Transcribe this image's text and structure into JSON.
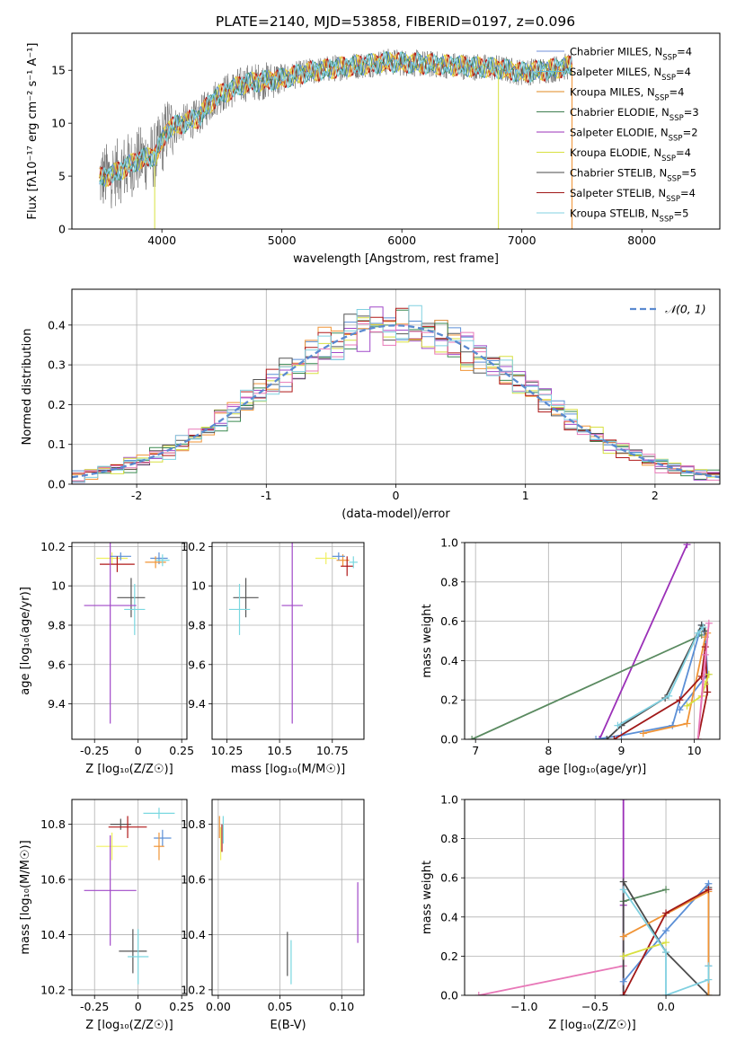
{
  "figure_title": "PLATE=2140, MJD=53858, FIBERID=0197, z=0.096",
  "model_colors": [
    "#5b8fd6",
    "#f09436",
    "#3a8a50",
    "#a048c8",
    "#f0f060",
    "#555555",
    "#b01818",
    "#d8d800",
    "#7ad8e0"
  ],
  "legend_entries": [
    {
      "label": "Chabrier MILES, N_SSP=4",
      "text": "Chabrier MILES, N",
      "sub": "SSP",
      "tail": "=4",
      "color": "#6f8fd8"
    },
    {
      "label": "Salpeter MILES, N_SSP=4",
      "text": "Salpeter MILES, N",
      "sub": "SSP",
      "tail": "=4",
      "color": "#5fb8d0"
    },
    {
      "label": "Kroupa MILES, N_SSP=4",
      "text": "Kroupa MILES, N",
      "sub": "SSP",
      "tail": "=4",
      "color": "#e08a20"
    },
    {
      "label": "Chabrier ELODIE, N_SSP=3",
      "text": "Chabrier ELODIE, N",
      "sub": "SSP",
      "tail": "=3",
      "color": "#3f7f50"
    },
    {
      "label": "Salpeter ELODIE, N_SSP=2",
      "text": "Salpeter ELODIE, N",
      "sub": "SSP",
      "tail": "=2",
      "color": "#9b30b8"
    },
    {
      "label": "Kroupa ELODIE, N_SSP=4",
      "text": "Kroupa ELODIE, N",
      "sub": "SSP",
      "tail": "=4",
      "color": "#d8e040"
    },
    {
      "label": "Chabrier STELIB, N_SSP=5",
      "text": "Chabrier STELIB, N",
      "sub": "SSP",
      "tail": "=5",
      "color": "#4a4a4a"
    },
    {
      "label": "Salpeter STELIB, N_SSP=4",
      "text": "Salpeter STELIB, N",
      "sub": "SSP",
      "tail": "=4",
      "color": "#a01818"
    },
    {
      "label": "Kroupa STELIB, N_SSP=5",
      "text": "Kroupa STELIB, N",
      "sub": "SSP",
      "tail": "=5",
      "color": "#80d0e0"
    }
  ],
  "chart_data": [
    {
      "id": "spectrum",
      "type": "line",
      "title": "PLATE=2140, MJD=53858, FIBERID=0197, z=0.096",
      "xlabel": "wavelength [Angstrom, rest frame]",
      "ylabel": "Flux [fλ10⁻¹⁷ erg cm⁻² s⁻¹ A⁻¹]",
      "xlim": [
        3250,
        8650
      ],
      "ylim": [
        0,
        18.5
      ],
      "xticks": [
        4000,
        5000,
        6000,
        7000,
        8000
      ],
      "yticks": [
        0,
        5,
        10,
        15
      ],
      "continuum": {
        "x": [
          3480,
          3600,
          3800,
          3950,
          4050,
          4300,
          4450,
          4700,
          5000,
          5200,
          5500,
          5900,
          6200,
          6500,
          6800,
          7000,
          7200,
          7400
        ],
        "y": [
          4.8,
          5.2,
          6.5,
          7.0,
          9.5,
          10.5,
          12.5,
          13.8,
          14.2,
          14.8,
          15.3,
          15.8,
          15.6,
          15.4,
          15.2,
          14.8,
          15.0,
          15.4
        ]
      },
      "grid": false
    },
    {
      "id": "residual_histogram",
      "type": "histogram",
      "xlabel": "(data-model)/error",
      "ylabel": "Normed distribution",
      "xlim": [
        -2.5,
        2.5
      ],
      "ylim": [
        0,
        0.49
      ],
      "xticks": [
        -2,
        -1,
        0,
        1,
        2
      ],
      "yticks": [
        0.0,
        0.1,
        0.2,
        0.3,
        0.4
      ],
      "legend": {
        "label": "𝒩(0, 1)",
        "placement": "top-right"
      },
      "reference_curve": "normal(0,1)",
      "grid": true
    },
    {
      "id": "age_vs_Z",
      "type": "errorbar",
      "xlabel": "Z [log₁₀(Z/Z☉)]",
      "ylabel": "age  [log₁₀(age/yr)]",
      "xlim": [
        -0.38,
        0.28
      ],
      "ylim": [
        9.22,
        10.22
      ],
      "xticks": [
        -0.25,
        0.0,
        0.25
      ],
      "yticks": [
        9.4,
        9.6,
        9.8,
        10.0,
        10.2
      ],
      "points": [
        {
          "x": -0.15,
          "y": 10.14,
          "xerr": 0.09,
          "yerr": 0.03,
          "c": 4
        },
        {
          "x": -0.1,
          "y": 10.15,
          "xerr": 0.06,
          "yerr": 0.02,
          "c": 0
        },
        {
          "x": -0.12,
          "y": 10.11,
          "xerr": 0.1,
          "yerr": 0.04,
          "c": 6
        },
        {
          "x": 0.12,
          "y": 10.14,
          "xerr": 0.05,
          "yerr": 0.03,
          "c": 0
        },
        {
          "x": 0.1,
          "y": 10.12,
          "xerr": 0.06,
          "yerr": 0.03,
          "c": 1
        },
        {
          "x": 0.14,
          "y": 10.13,
          "xerr": 0.04,
          "yerr": 0.03,
          "c": 8
        },
        {
          "x": -0.04,
          "y": 9.94,
          "xerr": 0.08,
          "yerr": 0.1,
          "c": 5
        },
        {
          "x": -0.02,
          "y": 9.88,
          "xerr": 0.06,
          "yerr": 0.13,
          "c": 8
        },
        {
          "x": -0.16,
          "y": 9.9,
          "xerr": 0.15,
          "yerr": 0.6,
          "c": 3
        }
      ]
    },
    {
      "id": "age_vs_mass",
      "type": "errorbar",
      "xlabel": "mass [log₁₀(M/M☉)]",
      "ylabel": "",
      "xlim": [
        10.18,
        10.9
      ],
      "ylim": [
        9.22,
        10.22
      ],
      "xticks": [
        10.25,
        10.5,
        10.75
      ],
      "yticks": [
        9.4,
        9.6,
        9.8,
        10.0,
        10.2
      ],
      "points": [
        {
          "x": 10.72,
          "y": 10.14,
          "xerr": 0.05,
          "yerr": 0.03,
          "c": 4
        },
        {
          "x": 10.8,
          "y": 10.13,
          "xerr": 0.03,
          "yerr": 0.03,
          "c": 1
        },
        {
          "x": 10.78,
          "y": 10.15,
          "xerr": 0.03,
          "yerr": 0.02,
          "c": 0
        },
        {
          "x": 10.82,
          "y": 10.1,
          "xerr": 0.03,
          "yerr": 0.05,
          "c": 6
        },
        {
          "x": 10.85,
          "y": 10.12,
          "xerr": 0.02,
          "yerr": 0.03,
          "c": 8
        },
        {
          "x": 10.34,
          "y": 9.94,
          "xerr": 0.06,
          "yerr": 0.1,
          "c": 5
        },
        {
          "x": 10.31,
          "y": 9.88,
          "xerr": 0.05,
          "yerr": 0.13,
          "c": 8
        },
        {
          "x": 10.56,
          "y": 9.9,
          "xerr": 0.05,
          "yerr": 0.6,
          "c": 3
        }
      ]
    },
    {
      "id": "massweight_vs_age",
      "type": "line",
      "xlabel": "age  [log₁₀(age/yr)]",
      "ylabel": "mass weight",
      "xlim": [
        6.85,
        10.35
      ],
      "ylim": [
        0,
        1.0
      ],
      "xticks": [
        7,
        8,
        9,
        10
      ],
      "yticks": [
        0.0,
        0.2,
        0.4,
        0.6,
        0.8,
        1.0
      ],
      "series": [
        {
          "c": 3,
          "x": [
            8.7,
            9.9
          ],
          "y": [
            0.0,
            0.99
          ]
        },
        {
          "c": 2,
          "x": [
            6.95,
            10.1
          ],
          "y": [
            0.0,
            0.53
          ]
        },
        {
          "c": 0,
          "x": [
            8.65,
            9.0,
            9.7,
            10.1,
            10.15,
            10.18,
            9.8
          ],
          "y": [
            0.0,
            0.02,
            0.07,
            0.58,
            0.52,
            0.33,
            0.15
          ]
        },
        {
          "c": 1,
          "x": [
            9.3,
            9.9,
            10.15,
            10.18
          ],
          "y": [
            0.03,
            0.08,
            0.52,
            0.54
          ]
        },
        {
          "c": 5,
          "x": [
            8.8,
            9.0,
            9.6,
            10.1,
            10.15
          ],
          "y": [
            0.0,
            0.07,
            0.21,
            0.58,
            0.55
          ]
        },
        {
          "c": 6,
          "x": [
            8.9,
            9.8,
            10.1,
            10.15,
            10.18,
            10.05
          ],
          "y": [
            0.0,
            0.2,
            0.32,
            0.47,
            0.24,
            0.0
          ]
        },
        {
          "c": 7,
          "x": [
            9.9,
            10.1,
            10.2,
            10.15
          ],
          "y": [
            0.17,
            0.22,
            0.33,
            0.28
          ]
        },
        {
          "c": 8,
          "x": [
            8.95,
            9.65,
            10.05,
            10.12
          ],
          "y": [
            0.07,
            0.22,
            0.54,
            0.57
          ]
        },
        {
          "c": 9,
          "x": [
            10.2,
            10.05,
            10.15
          ],
          "y": [
            0.59,
            0.0,
            0.43
          ]
        }
      ]
    },
    {
      "id": "mass_vs_Z",
      "type": "errorbar",
      "xlabel": "Z [log₁₀(Z/Z☉)]",
      "ylabel": "mass [log₁₀(M/M☉)]",
      "xlim": [
        -0.38,
        0.28
      ],
      "ylim": [
        10.18,
        10.89
      ],
      "xticks": [
        -0.25,
        0.0,
        0.25
      ],
      "yticks": [
        10.2,
        10.4,
        10.6,
        10.8
      ],
      "points": [
        {
          "x": -0.15,
          "y": 10.72,
          "xerr": 0.09,
          "yerr": 0.05,
          "c": 4
        },
        {
          "x": -0.1,
          "y": 10.8,
          "xerr": 0.06,
          "yerr": 0.02,
          "c": 5
        },
        {
          "x": -0.06,
          "y": 10.79,
          "xerr": 0.11,
          "yerr": 0.04,
          "c": 6
        },
        {
          "x": 0.14,
          "y": 10.75,
          "xerr": 0.05,
          "yerr": 0.03,
          "c": 0
        },
        {
          "x": 0.12,
          "y": 10.72,
          "xerr": 0.03,
          "yerr": 0.05,
          "c": 1
        },
        {
          "x": 0.12,
          "y": 10.84,
          "xerr": 0.09,
          "yerr": 0.02,
          "c": 8
        },
        {
          "x": -0.03,
          "y": 10.34,
          "xerr": 0.08,
          "yerr": 0.08,
          "c": 5
        },
        {
          "x": 0.0,
          "y": 10.32,
          "xerr": 0.06,
          "yerr": 0.1,
          "c": 8
        },
        {
          "x": -0.16,
          "y": 10.56,
          "xerr": 0.15,
          "yerr": 0.2,
          "c": 3
        }
      ]
    },
    {
      "id": "mass_vs_EBV",
      "type": "errorbar",
      "xlabel": "E(B-V)",
      "ylabel": "",
      "xlim": [
        -0.005,
        0.118
      ],
      "ylim": [
        10.18,
        10.89
      ],
      "xticks": [
        0.0,
        0.05,
        0.1
      ],
      "yticks": [
        10.2,
        10.4,
        10.6,
        10.8
      ],
      "points": [
        {
          "x": 0.002,
          "y": 10.73,
          "xerr": 0.0,
          "yerr": 0.06,
          "c": 4
        },
        {
          "x": 0.003,
          "y": 10.75,
          "xerr": 0.0,
          "yerr": 0.05,
          "c": 6
        },
        {
          "x": 0.004,
          "y": 10.78,
          "xerr": 0.0,
          "yerr": 0.05,
          "c": 8
        },
        {
          "x": 0.001,
          "y": 10.79,
          "xerr": 0.0,
          "yerr": 0.04,
          "c": 1
        },
        {
          "x": 0.056,
          "y": 10.33,
          "xerr": 0.0,
          "yerr": 0.08,
          "c": 5
        },
        {
          "x": 0.059,
          "y": 10.3,
          "xerr": 0.0,
          "yerr": 0.08,
          "c": 8
        },
        {
          "x": 0.113,
          "y": 10.48,
          "xerr": 0.0,
          "yerr": 0.11,
          "c": 3
        }
      ]
    },
    {
      "id": "massweight_vs_Z",
      "type": "line",
      "xlabel": "Z [log₁₀(Z/Z☉)]",
      "ylabel": "mass weight",
      "xlim": [
        -1.42,
        0.38
      ],
      "ylim": [
        0,
        1.0
      ],
      "xticks": [
        -1.0,
        -0.5,
        0.0
      ],
      "yticks": [
        0.0,
        0.2,
        0.4,
        0.6,
        0.8,
        1.0
      ],
      "series": [
        {
          "c": 9,
          "x": [
            -1.32,
            -0.3
          ],
          "y": [
            0.0,
            0.15
          ]
        },
        {
          "c": 3,
          "x": [
            -0.3,
            -0.3,
            -0.3
          ],
          "y": [
            0.0,
            1.0,
            0.46
          ]
        },
        {
          "c": 2,
          "x": [
            -0.3,
            0.0
          ],
          "y": [
            0.48,
            0.54
          ]
        },
        {
          "c": 5,
          "x": [
            -0.3,
            -0.3,
            0.0,
            0.3,
            0.3
          ],
          "y": [
            0.0,
            0.58,
            0.22,
            0.0,
            0.55
          ]
        },
        {
          "c": 0,
          "x": [
            -0.3,
            0.0,
            0.3,
            0.3
          ],
          "y": [
            0.07,
            0.33,
            0.57,
            0.15
          ]
        },
        {
          "c": 1,
          "x": [
            -0.3,
            0.3,
            0.3
          ],
          "y": [
            0.3,
            0.53,
            0.0
          ]
        },
        {
          "c": 6,
          "x": [
            -0.3,
            0.0,
            0.3
          ],
          "y": [
            0.0,
            0.42,
            0.54
          ]
        },
        {
          "c": 7,
          "x": [
            -0.3,
            0.0
          ],
          "y": [
            0.2,
            0.27
          ]
        },
        {
          "c": 8,
          "x": [
            -0.3,
            0.0,
            0.0,
            0.3,
            0.3
          ],
          "y": [
            0.54,
            0.22,
            0.0,
            0.08,
            0.15
          ]
        }
      ]
    }
  ]
}
